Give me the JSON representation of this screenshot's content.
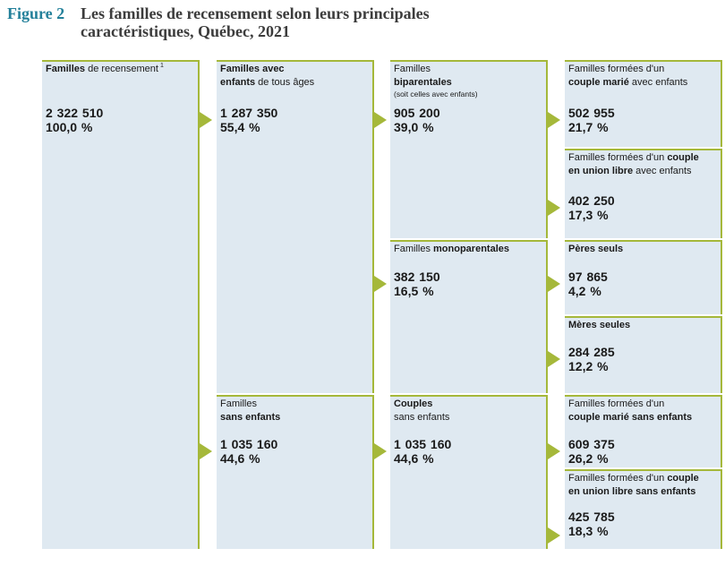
{
  "figure": {
    "number": "Figure 2",
    "title_lines": [
      "Les familles de recensement selon leurs principales",
      "caractéristiques, Québec, 2021"
    ]
  },
  "nodes": {
    "census_families": {
      "label": [
        "Familles",
        " de recensement"
      ],
      "footnote": "1",
      "count": "2 322 510",
      "percent": "100,0 %"
    },
    "with_children": {
      "label": [
        "Familles avec",
        "enfants",
        " de tous âges"
      ],
      "count": "1 287 350",
      "percent": "55,4 %"
    },
    "without_children": {
      "label": [
        "Familles",
        "sans enfants"
      ],
      "count": "1 035 160",
      "percent": "44,6 %"
    },
    "two_parent": {
      "label": [
        "Familles",
        "biparentales"
      ],
      "sublabel": "(soit celles avec enfants)",
      "count": "905 200",
      "percent": "39,0 %"
    },
    "one_parent": {
      "label": [
        "Familles ",
        "monoparentales"
      ],
      "count": "382 150",
      "percent": "16,5 %"
    },
    "couples_no_children": {
      "label": [
        "Couples",
        "sans enfants"
      ],
      "count": "1 035 160",
      "percent": "44,6 %"
    },
    "married_with_children": {
      "label": [
        "Familles formées d'un",
        "couple marié",
        " avec enfants"
      ],
      "count": "502 955",
      "percent": "21,7 %"
    },
    "common_law_with_children": {
      "label": [
        "Familles formées d'un ",
        "couple",
        "en union libre",
        " avec enfants"
      ],
      "count": "402 250",
      "percent": "17,3 %"
    },
    "lone_fathers": {
      "label": [
        "Pères seuls"
      ],
      "count": "97 865",
      "percent": "4,2 %"
    },
    "lone_mothers": {
      "label": [
        "Mères seules"
      ],
      "count": "284 285",
      "percent": "12,2 %"
    },
    "married_no_children": {
      "label": [
        "Familles formées d'un",
        "couple marié sans enfants"
      ],
      "count": "609 375",
      "percent": "26,2 %"
    },
    "common_law_no_children": {
      "label": [
        "Familles formées d'un ",
        "couple",
        "en union libre sans enfants"
      ],
      "count": "425 785",
      "percent": "18,3 %"
    }
  },
  "icons": {
    "connector": "arrow-right-icon"
  },
  "colors": {
    "box_fill": "#dfe9f1",
    "accent": "#a5b83a",
    "figure_number": "#23809a",
    "title": "#3c3c3c"
  }
}
